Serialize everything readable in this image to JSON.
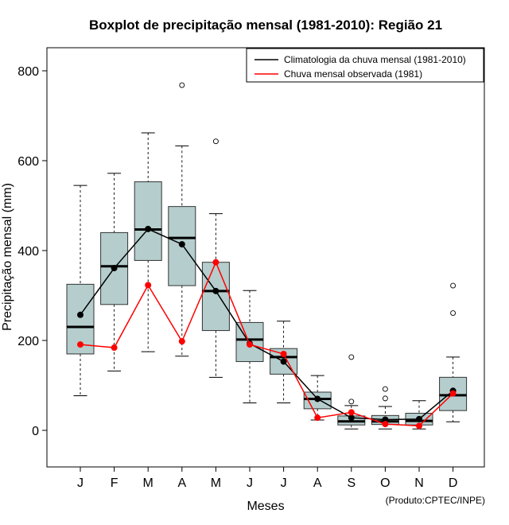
{
  "chart_data": {
    "type": "boxplot",
    "title": "Boxplot de precipitação mensal (1981-2010): Região 21",
    "xlabel": "Meses",
    "ylabel": "Precipitação mensal (mm)",
    "ylim": [
      -80,
      850
    ],
    "yticks": [
      0,
      200,
      400,
      600,
      800
    ],
    "categories": [
      "J",
      "F",
      "M",
      "A",
      "M",
      "J",
      "J",
      "A",
      "S",
      "O",
      "N",
      "D"
    ],
    "boxes": [
      {
        "whisker_low": 77,
        "q1": 170,
        "median": 230,
        "q3": 325,
        "whisker_high": 545,
        "outliers": []
      },
      {
        "whisker_low": 132,
        "q1": 280,
        "median": 365,
        "q3": 440,
        "whisker_high": 572,
        "outliers": []
      },
      {
        "whisker_low": 175,
        "q1": 378,
        "median": 447,
        "q3": 553,
        "whisker_high": 662,
        "outliers": []
      },
      {
        "whisker_low": 165,
        "q1": 322,
        "median": 428,
        "q3": 498,
        "whisker_high": 633,
        "outliers": [
          768
        ]
      },
      {
        "whisker_low": 118,
        "q1": 222,
        "median": 310,
        "q3": 374,
        "whisker_high": 482,
        "outliers": [
          643
        ]
      },
      {
        "whisker_low": 61,
        "q1": 153,
        "median": 202,
        "q3": 240,
        "whisker_high": 311,
        "outliers": []
      },
      {
        "whisker_low": 61,
        "q1": 125,
        "median": 163,
        "q3": 182,
        "whisker_high": 243,
        "outliers": []
      },
      {
        "whisker_low": 23,
        "q1": 48,
        "median": 70,
        "q3": 85,
        "whisker_high": 122,
        "outliers": []
      },
      {
        "whisker_low": 3,
        "q1": 12,
        "median": 20,
        "q3": 32,
        "whisker_high": 55,
        "outliers": [
          64,
          163
        ]
      },
      {
        "whisker_low": 3,
        "q1": 13,
        "median": 20,
        "q3": 33,
        "whisker_high": 53,
        "outliers": [
          71,
          92
        ]
      },
      {
        "whisker_low": 3,
        "q1": 12,
        "median": 21,
        "q3": 38,
        "whisker_high": 66,
        "outliers": []
      },
      {
        "whisker_low": 19,
        "q1": 44,
        "median": 78,
        "q3": 118,
        "whisker_high": 163,
        "outliers": [
          261,
          322
        ]
      }
    ],
    "series": [
      {
        "name": "Climatologia da chuva mensal (1981-2010)",
        "color": "#000000",
        "values": [
          257,
          361,
          448,
          414,
          310,
          193,
          153,
          70,
          28,
          24,
          25,
          88
        ]
      },
      {
        "name": "Chuva mensal observada (1981)",
        "color": "#ff0000",
        "values": [
          191,
          184,
          323,
          198,
          374,
          191,
          170,
          28,
          40,
          14,
          10,
          82
        ]
      }
    ],
    "box_fill": "#b5cdcd",
    "legend_position": "top-right"
  },
  "footer": "(Produto:CPTEC/INPE)"
}
